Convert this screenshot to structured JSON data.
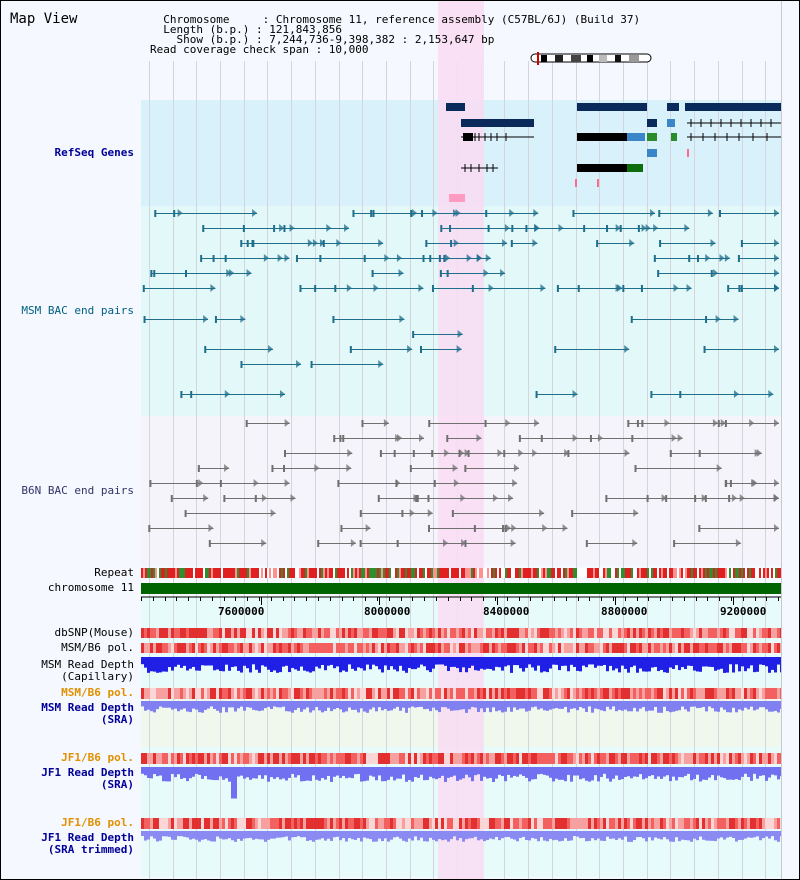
{
  "title": "Map View",
  "header": {
    "lines": [
      "  Chromosome     : Chromosome 11, reference assembly (C57BL/6J) (Build 37)",
      "  Length (b.p.) : 121,843,856",
      "    Show (b.p.) : 7,244,736-9,398,382 : 2,153,647 bp",
      "Read coverage check span : 10,000"
    ]
  },
  "tracks": {
    "refseq": "RefSeq Genes",
    "msm_bac": "MSM BAC end pairs",
    "b6n_bac": "B6N BAC end pairs",
    "repeat": "Repeat",
    "chromosome": "chromosome 11",
    "dbsnp": "dbSNP(Mouse)",
    "msm_pol": "MSM/B6 pol.",
    "msm_depth_cap_1": "MSM Read Depth",
    "msm_depth_cap_2": "(Capillary)",
    "msm_pol_sra": "MSM/B6 pol.",
    "msm_depth_sra_1": "MSM Read Depth",
    "msm_depth_sra_2": "(SRA)",
    "jf1_pol": "JF1/B6 pol.",
    "jf1_depth_1": "JF1 Read Depth",
    "jf1_depth_2": "(SRA)",
    "jf1_pol_trim": "JF1/B6 pol.",
    "jf1_trim_1": "JF1 Read Depth",
    "jf1_trim_2": "(SRA trimmed)"
  },
  "axis": {
    "ticks": [
      "7600000",
      "8000000",
      "8400000",
      "8800000",
      "9200000"
    ]
  },
  "colors": {
    "refseq_bg": "#d9f1fb",
    "msm_bg": "#e3f8f8",
    "b6n_bg": "#f4f4fa",
    "highlight": "#f9dcf3",
    "gene_navy": "#0a2a5c",
    "chromosome": "#006400",
    "depth_blue": "#1f1fe6",
    "depth_lavender": "#7f7ff2",
    "label_blue": "#000099",
    "label_orange": "#e09000"
  }
}
